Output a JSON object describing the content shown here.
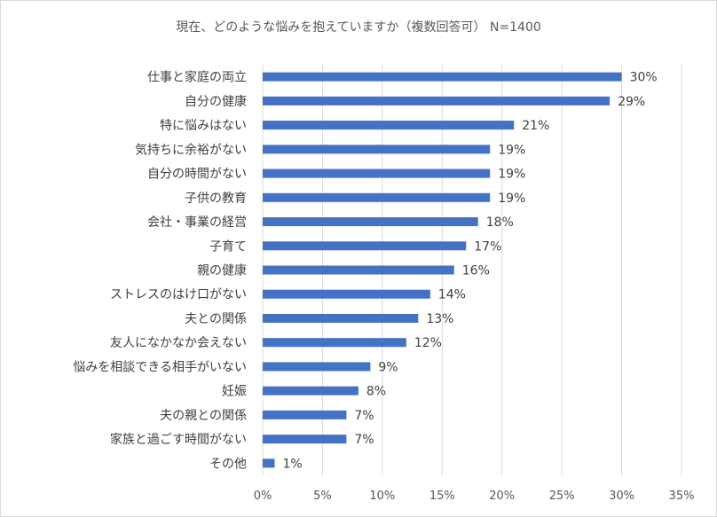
{
  "chart_data": {
    "type": "bar",
    "orientation": "horizontal",
    "title": "現在、どのような悩みを抱えていますか（複数回答可） N=1400",
    "categories": [
      "仕事と家庭の両立",
      "自分の健康",
      "特に悩みはない",
      "気持ちに余裕がない",
      "自分の時間がない",
      "子供の教育",
      "会社・事業の経営",
      "子育て",
      "親の健康",
      "ストレスのはけ口がない",
      "夫との関係",
      "友人になかなか会えない",
      "悩みを相談できる相手がいない",
      "妊娠",
      "夫の親との関係",
      "家族と過ごす時間がない",
      "その他"
    ],
    "values": [
      30,
      29,
      21,
      19,
      19,
      19,
      18,
      17,
      16,
      14,
      13,
      12,
      9,
      8,
      7,
      7,
      1
    ],
    "data_labels": [
      "30%",
      "29%",
      "21%",
      "19%",
      "19%",
      "19%",
      "18%",
      "17%",
      "16%",
      "14%",
      "13%",
      "12%",
      "9%",
      "8%",
      "7%",
      "7%",
      "1%"
    ],
    "xlim": [
      0,
      35
    ],
    "x_ticks": [
      0,
      5,
      10,
      15,
      20,
      25,
      30,
      35
    ],
    "x_tick_labels": [
      "0%",
      "5%",
      "10%",
      "15%",
      "20%",
      "25%",
      "30%",
      "35%"
    ],
    "grid": "vertical",
    "bar_color": "#4472c4",
    "grid_color": "#d9d9d9",
    "xlabel": "",
    "ylabel": ""
  }
}
